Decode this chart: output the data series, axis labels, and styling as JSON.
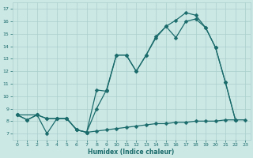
{
  "xlabel": "Humidex (Indice chaleur)",
  "xlim": [
    -0.5,
    23.5
  ],
  "ylim": [
    6.5,
    17.5
  ],
  "xticks": [
    0,
    1,
    2,
    3,
    4,
    5,
    6,
    7,
    8,
    9,
    10,
    11,
    12,
    13,
    14,
    15,
    16,
    17,
    18,
    19,
    20,
    21,
    22,
    23
  ],
  "yticks": [
    7,
    8,
    9,
    10,
    11,
    12,
    13,
    14,
    15,
    16,
    17
  ],
  "background_color": "#cce8e5",
  "grid_color": "#aacfcc",
  "line_color": "#1a6b6b",
  "line1_x": [
    0,
    1,
    2,
    3,
    4,
    5,
    6,
    7,
    8,
    9,
    10,
    11,
    12,
    13,
    14,
    15,
    16,
    17,
    18,
    19,
    20,
    21,
    22,
    23
  ],
  "line1_y": [
    8.5,
    8.1,
    8.5,
    7.0,
    8.2,
    8.2,
    7.3,
    7.1,
    7.2,
    7.3,
    7.4,
    7.5,
    7.6,
    7.7,
    7.8,
    7.8,
    7.9,
    7.9,
    8.0,
    8.0,
    8.0,
    8.1,
    8.1,
    8.1
  ],
  "line2_x": [
    0,
    1,
    2,
    3,
    4,
    5,
    6,
    7,
    8,
    9,
    10,
    11,
    12,
    13,
    14,
    15,
    16,
    17,
    18,
    19,
    20,
    21,
    22
  ],
  "line2_y": [
    8.5,
    8.1,
    8.5,
    8.2,
    8.2,
    8.2,
    7.3,
    7.1,
    9.0,
    10.5,
    13.3,
    13.3,
    12.0,
    13.3,
    14.7,
    15.6,
    14.7,
    16.0,
    16.2,
    15.5,
    13.9,
    11.1,
    8.1
  ],
  "line3_x": [
    0,
    2,
    3,
    4,
    5,
    6,
    7,
    8,
    9,
    10,
    11,
    12,
    13,
    14,
    15,
    16,
    17,
    18,
    19,
    20,
    21,
    22
  ],
  "line3_y": [
    8.5,
    8.5,
    8.2,
    8.2,
    8.2,
    7.3,
    7.1,
    10.5,
    10.4,
    13.3,
    13.3,
    12.0,
    13.3,
    14.8,
    15.6,
    16.1,
    16.7,
    16.5,
    15.5,
    13.9,
    11.1,
    8.1
  ],
  "markersize": 2.5,
  "linewidth": 0.9
}
